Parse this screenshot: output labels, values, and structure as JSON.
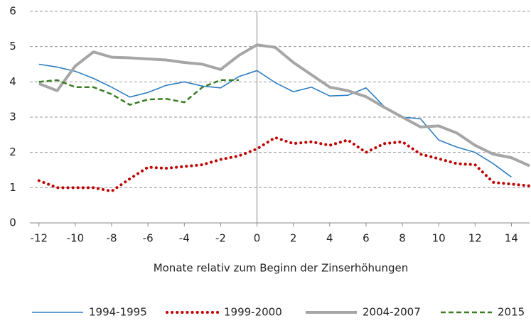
{
  "chart_data": {
    "type": "line",
    "x_label": "Monate relativ zum Beginn der Zinserhöhungen",
    "x": [
      -12,
      -11,
      -10,
      -9,
      -8,
      -7,
      -6,
      -5,
      -4,
      -3,
      -2,
      -1,
      0,
      1,
      2,
      3,
      4,
      5,
      6,
      7,
      8,
      9,
      10,
      11,
      12,
      13,
      14,
      15
    ],
    "xlim": [
      -12.5,
      15
    ],
    "xticks": [
      -12,
      -10,
      -8,
      -6,
      -4,
      -2,
      0,
      2,
      4,
      6,
      8,
      10,
      12,
      14
    ],
    "ylim": [
      0,
      6
    ],
    "yticks": [
      0,
      1,
      2,
      3,
      4,
      5,
      6
    ],
    "grid": true,
    "legend": "bottom",
    "series": [
      {
        "name": "1994-1995",
        "color": "#2e7ec2",
        "style": "solid",
        "values": [
          4.5,
          4.42,
          4.3,
          4.1,
          3.85,
          3.57,
          3.7,
          3.9,
          4.0,
          3.88,
          3.83,
          4.15,
          4.32,
          3.98,
          3.72,
          3.85,
          3.6,
          3.62,
          3.83,
          3.3,
          3.0,
          2.95,
          2.35,
          2.15,
          2.0,
          1.68,
          1.3,
          null
        ]
      },
      {
        "name": "1999-2000",
        "color": "#c00000",
        "style": "dotted",
        "values": [
          1.2,
          1.0,
          1.0,
          1.0,
          0.9,
          1.25,
          1.58,
          1.55,
          1.6,
          1.65,
          1.8,
          1.9,
          2.1,
          2.42,
          2.25,
          2.3,
          2.2,
          2.35,
          2.0,
          2.25,
          2.3,
          1.95,
          1.82,
          1.68,
          1.65,
          1.15,
          1.1,
          1.05
        ]
      },
      {
        "name": "2004-2007",
        "color": "#a6a6a6",
        "style": "thick",
        "values": [
          3.95,
          3.75,
          4.45,
          4.85,
          4.7,
          4.68,
          4.65,
          4.62,
          4.55,
          4.5,
          4.35,
          4.75,
          5.05,
          4.98,
          4.55,
          4.2,
          3.85,
          3.75,
          3.58,
          3.28,
          3.0,
          2.72,
          2.75,
          2.55,
          2.2,
          1.95,
          1.85,
          1.62
        ]
      },
      {
        "name": "2015",
        "color": "#3a7d22",
        "style": "dashed",
        "values": [
          4.0,
          4.05,
          3.85,
          3.85,
          3.65,
          3.35,
          3.5,
          3.52,
          3.42,
          3.85,
          4.05,
          4.05,
          null,
          null,
          null,
          null,
          null,
          null,
          null,
          null,
          null,
          null,
          null,
          null,
          null,
          null,
          null,
          null
        ]
      }
    ]
  }
}
